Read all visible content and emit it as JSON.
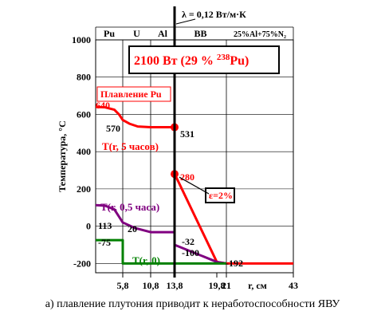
{
  "chart_data": {
    "type": "line",
    "title": "2100 Вт (29 % ²³⁸Pu)",
    "title_parts": {
      "main": "2100 Вт (29 % ",
      "sup": "238",
      "tail": "Pu)"
    },
    "lambda_label": "λ = 0,12 Вт/м·К",
    "xlabel": "r, см",
    "ylabel": "Температура,  °С",
    "xlim": [
      0,
      43
    ],
    "ylim": [
      -250,
      1000
    ],
    "x_ticks": [
      {
        "value": 5.8,
        "label": "5,8"
      },
      {
        "value": 10.8,
        "label": "10,8"
      },
      {
        "value": 13.8,
        "label": "13,8"
      },
      {
        "value": 19.8,
        "label": "19,8"
      },
      {
        "value": 21,
        "label": "21"
      },
      {
        "value": 43,
        "label": "43"
      }
    ],
    "y_ticks": [
      {
        "value": 1000,
        "label": "1000"
      },
      {
        "value": 800,
        "label": "800"
      },
      {
        "value": 600,
        "label": "600"
      },
      {
        "value": 400,
        "label": "400"
      },
      {
        "value": 200,
        "label": "200"
      },
      {
        "value": 0,
        "label": "0"
      },
      {
        "value": -200,
        "label": "-200"
      }
    ],
    "regions": [
      {
        "label": "Pu",
        "from": 0,
        "to": 5.8
      },
      {
        "label": "U",
        "from": 5.8,
        "to": 10.8
      },
      {
        "label": "Al",
        "from": 10.8,
        "to": 13.8
      },
      {
        "label": "ВВ",
        "from": 13.8,
        "to": 21
      },
      {
        "label": "25%Al+75%N₂",
        "from": 21,
        "to": 43
      }
    ],
    "series": [
      {
        "name": "T(r, 5 часов)",
        "color": "#ff0000",
        "x": [
          0,
          2,
          4,
          5,
          5.8,
          7,
          8.5,
          10.8,
          13.8,
          13.8,
          14.2,
          19.8,
          21,
          43
        ],
        "y": [
          640,
          638,
          625,
          600,
          570,
          550,
          535,
          531,
          531,
          280,
          250,
          -192,
          -200,
          -200
        ]
      },
      {
        "name": "T(r, 0,5 часа)",
        "color": "#800080",
        "x": [
          0,
          2,
          4,
          5.8,
          8,
          10.8,
          13.8,
          13.8,
          19.8,
          21
        ],
        "y": [
          113,
          110,
          90,
          20,
          -10,
          -32,
          -32,
          -100,
          -192,
          -200
        ]
      },
      {
        "name": "T(r, 0)",
        "color": "#008000",
        "x": [
          0,
          5.8,
          5.8,
          21
        ],
        "y": [
          -75,
          -75,
          -200,
          -200
        ]
      }
    ],
    "annotations": [
      {
        "text": "Плавление Pu",
        "color": "#ff0000",
        "boxed": true
      },
      {
        "text": "640",
        "color": "#ff0000"
      },
      {
        "text": "570",
        "color": "#000000"
      },
      {
        "text": "531",
        "color": "#000000"
      },
      {
        "text": "280",
        "color": "#ff0000"
      },
      {
        "text": "ε=2%",
        "color": "#ff0000",
        "boxed": true
      },
      {
        "text": "113",
        "color": "#000000"
      },
      {
        "text": "20",
        "color": "#000000"
      },
      {
        "text": "-75",
        "color": "#000000"
      },
      {
        "text": "-32",
        "color": "#000000"
      },
      {
        "text": "-100",
        "color": "#000000"
      },
      {
        "text": "-192",
        "color": "#000000"
      }
    ],
    "grid": true,
    "legend": "none"
  },
  "caption": "а) плавление плутония приводит к неработоспособности ЯВУ"
}
